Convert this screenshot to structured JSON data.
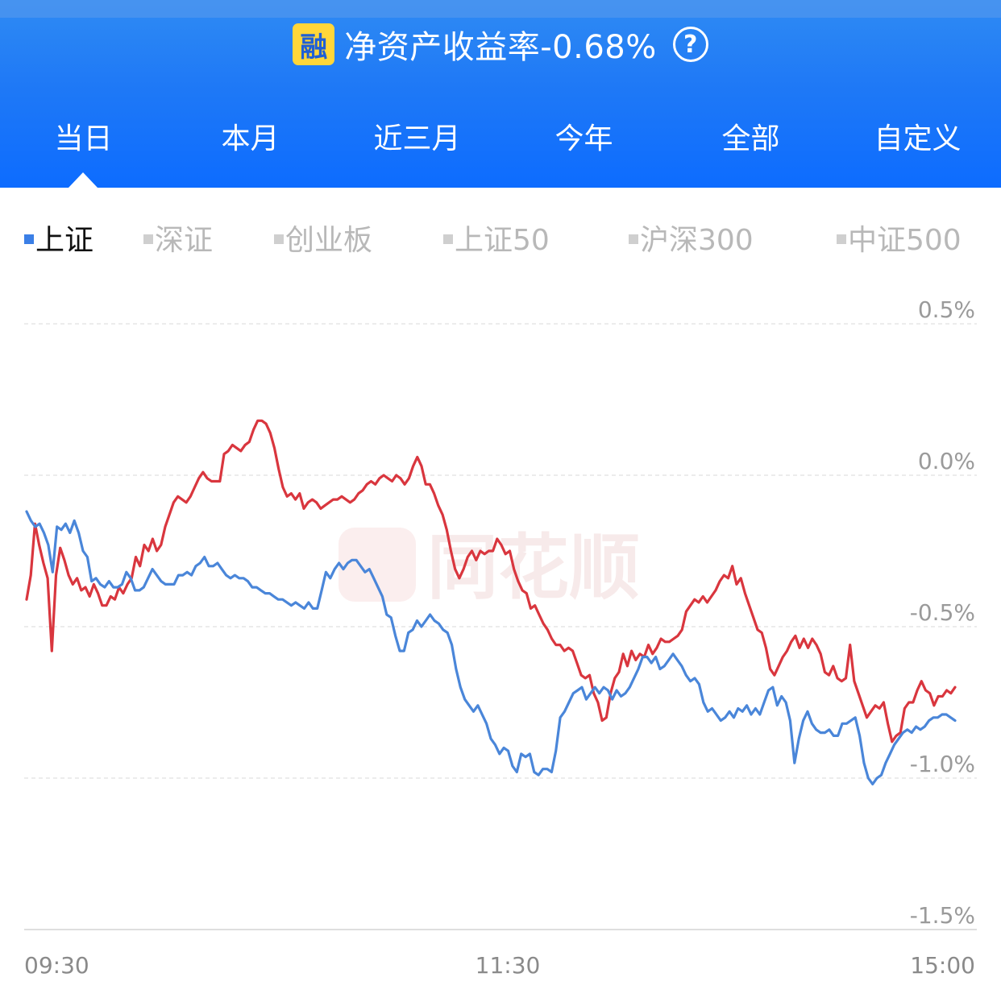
{
  "header": {
    "badge_text": "融",
    "title": "净资产收益率-0.68%",
    "help_icon": "question-circle-icon",
    "background_color": "#1f79f6"
  },
  "tabs": [
    {
      "label": "当日",
      "active": true
    },
    {
      "label": "本月",
      "active": false
    },
    {
      "label": "近三月",
      "active": false
    },
    {
      "label": "今年",
      "active": false
    },
    {
      "label": "全部",
      "active": false
    },
    {
      "label": "自定义",
      "active": false
    }
  ],
  "indices": [
    {
      "label": "上证",
      "active": true
    },
    {
      "label": "深证",
      "active": false
    },
    {
      "label": "创业板",
      "active": false
    },
    {
      "label": "上证50",
      "active": false
    },
    {
      "label": "沪深300",
      "active": false
    },
    {
      "label": "中证500",
      "active": false
    }
  ],
  "watermark": "同花顺",
  "chart_data": {
    "type": "line",
    "x_ticks": [
      "09:30",
      "11:30",
      "15:00"
    ],
    "y_ticks": [
      "0.5%",
      "0.0%",
      "-0.5%",
      "-1.0%",
      "-1.5%"
    ],
    "ylim": [
      -1.5,
      0.5
    ],
    "grid": true,
    "series": [
      {
        "color": "#d9363e",
        "values": [
          -0.41,
          -0.33,
          -0.16,
          -0.23,
          -0.29,
          -0.34,
          -0.58,
          -0.33,
          -0.24,
          -0.28,
          -0.33,
          -0.36,
          -0.34,
          -0.38,
          -0.37,
          -0.4,
          -0.36,
          -0.39,
          -0.43,
          -0.43,
          -0.4,
          -0.41,
          -0.37,
          -0.39,
          -0.36,
          -0.34,
          -0.27,
          -0.3,
          -0.23,
          -0.25,
          -0.21,
          -0.25,
          -0.23,
          -0.17,
          -0.13,
          -0.09,
          -0.07,
          -0.08,
          -0.09,
          -0.07,
          -0.04,
          -0.01,
          0.01,
          -0.01,
          -0.02,
          -0.02,
          -0.02,
          0.07,
          0.08,
          0.1,
          0.09,
          0.08,
          0.1,
          0.11,
          0.15,
          0.18,
          0.18,
          0.17,
          0.14,
          0.09,
          0.02,
          -0.04,
          -0.07,
          -0.06,
          -0.08,
          -0.06,
          -0.11,
          -0.09,
          -0.08,
          -0.09,
          -0.11,
          -0.1,
          -0.09,
          -0.08,
          -0.08,
          -0.07,
          -0.08,
          -0.09,
          -0.08,
          -0.06,
          -0.05,
          -0.03,
          -0.02,
          -0.03,
          -0.01,
          0.0,
          -0.01,
          -0.02,
          0.0,
          -0.01,
          -0.03,
          -0.01,
          0.03,
          0.06,
          0.03,
          -0.03,
          -0.03,
          -0.06,
          -0.1,
          -0.13,
          -0.18,
          -0.25,
          -0.31,
          -0.34,
          -0.31,
          -0.27,
          -0.25,
          -0.28,
          -0.25,
          -0.26,
          -0.25,
          -0.25,
          -0.21,
          -0.23,
          -0.26,
          -0.25,
          -0.31,
          -0.35,
          -0.38,
          -0.39,
          -0.44,
          -0.43,
          -0.46,
          -0.49,
          -0.51,
          -0.54,
          -0.56,
          -0.56,
          -0.58,
          -0.57,
          -0.58,
          -0.62,
          -0.66,
          -0.67,
          -0.66,
          -0.72,
          -0.75,
          -0.81,
          -0.8,
          -0.72,
          -0.67,
          -0.65,
          -0.59,
          -0.63,
          -0.58,
          -0.61,
          -0.59,
          -0.6,
          -0.56,
          -0.59,
          -0.57,
          -0.54,
          -0.55,
          -0.55,
          -0.54,
          -0.53,
          -0.51,
          -0.45,
          -0.43,
          -0.41,
          -0.42,
          -0.4,
          -0.42,
          -0.4,
          -0.38,
          -0.35,
          -0.33,
          -0.34,
          -0.3,
          -0.36,
          -0.34,
          -0.39,
          -0.43,
          -0.47,
          -0.51,
          -0.52,
          -0.57,
          -0.64,
          -0.66,
          -0.63,
          -0.6,
          -0.58,
          -0.55,
          -0.53,
          -0.57,
          -0.54,
          -0.57,
          -0.54,
          -0.56,
          -0.59,
          -0.65,
          -0.66,
          -0.63,
          -0.67,
          -0.68,
          -0.67,
          -0.56,
          -0.68,
          -0.72,
          -0.76,
          -0.8,
          -0.78,
          -0.76,
          -0.77,
          -0.75,
          -0.82,
          -0.88,
          -0.86,
          -0.85,
          -0.77,
          -0.75,
          -0.75,
          -0.71,
          -0.68,
          -0.71,
          -0.72,
          -0.76,
          -0.73,
          -0.73,
          -0.71,
          -0.72,
          -0.7
        ]
      },
      {
        "color": "#4a86d9",
        "values": [
          -0.12,
          -0.15,
          -0.17,
          -0.16,
          -0.19,
          -0.23,
          -0.32,
          -0.17,
          -0.18,
          -0.16,
          -0.19,
          -0.15,
          -0.19,
          -0.25,
          -0.27,
          -0.35,
          -0.34,
          -0.36,
          -0.37,
          -0.35,
          -0.37,
          -0.37,
          -0.36,
          -0.32,
          -0.34,
          -0.38,
          -0.38,
          -0.37,
          -0.34,
          -0.31,
          -0.33,
          -0.35,
          -0.36,
          -0.36,
          -0.36,
          -0.33,
          -0.33,
          -0.32,
          -0.33,
          -0.3,
          -0.29,
          -0.27,
          -0.3,
          -0.3,
          -0.29,
          -0.31,
          -0.33,
          -0.34,
          -0.33,
          -0.34,
          -0.34,
          -0.35,
          -0.37,
          -0.37,
          -0.38,
          -0.39,
          -0.39,
          -0.4,
          -0.41,
          -0.41,
          -0.42,
          -0.43,
          -0.42,
          -0.43,
          -0.44,
          -0.42,
          -0.44,
          -0.44,
          -0.38,
          -0.32,
          -0.34,
          -0.31,
          -0.29,
          -0.31,
          -0.29,
          -0.28,
          -0.28,
          -0.3,
          -0.32,
          -0.31,
          -0.34,
          -0.37,
          -0.4,
          -0.46,
          -0.47,
          -0.53,
          -0.58,
          -0.58,
          -0.52,
          -0.51,
          -0.48,
          -0.5,
          -0.48,
          -0.46,
          -0.48,
          -0.49,
          -0.51,
          -0.52,
          -0.56,
          -0.64,
          -0.7,
          -0.74,
          -0.76,
          -0.78,
          -0.76,
          -0.79,
          -0.82,
          -0.87,
          -0.89,
          -0.92,
          -0.9,
          -0.91,
          -0.96,
          -0.98,
          -0.92,
          -0.93,
          -0.92,
          -0.98,
          -0.99,
          -0.97,
          -0.97,
          -0.98,
          -0.91,
          -0.8,
          -0.78,
          -0.75,
          -0.72,
          -0.71,
          -0.7,
          -0.74,
          -0.72,
          -0.7,
          -0.72,
          -0.7,
          -0.71,
          -0.74,
          -0.71,
          -0.73,
          -0.72,
          -0.7,
          -0.67,
          -0.64,
          -0.6,
          -0.6,
          -0.62,
          -0.6,
          -0.64,
          -0.63,
          -0.61,
          -0.59,
          -0.61,
          -0.63,
          -0.66,
          -0.68,
          -0.67,
          -0.69,
          -0.75,
          -0.78,
          -0.77,
          -0.79,
          -0.81,
          -0.8,
          -0.78,
          -0.8,
          -0.77,
          -0.78,
          -0.76,
          -0.79,
          -0.77,
          -0.79,
          -0.75,
          -0.71,
          -0.7,
          -0.76,
          -0.73,
          -0.75,
          -0.81,
          -0.95,
          -0.87,
          -0.81,
          -0.78,
          -0.82,
          -0.84,
          -0.85,
          -0.85,
          -0.84,
          -0.86,
          -0.86,
          -0.82,
          -0.82,
          -0.81,
          -0.8,
          -0.86,
          -0.95,
          -1.0,
          -1.02,
          -1.0,
          -0.99,
          -0.95,
          -0.92,
          -0.89,
          -0.87,
          -0.85,
          -0.84,
          -0.85,
          -0.83,
          -0.84,
          -0.83,
          -0.81,
          -0.8,
          -0.8,
          -0.79,
          -0.79,
          -0.8,
          -0.81
        ]
      }
    ]
  }
}
